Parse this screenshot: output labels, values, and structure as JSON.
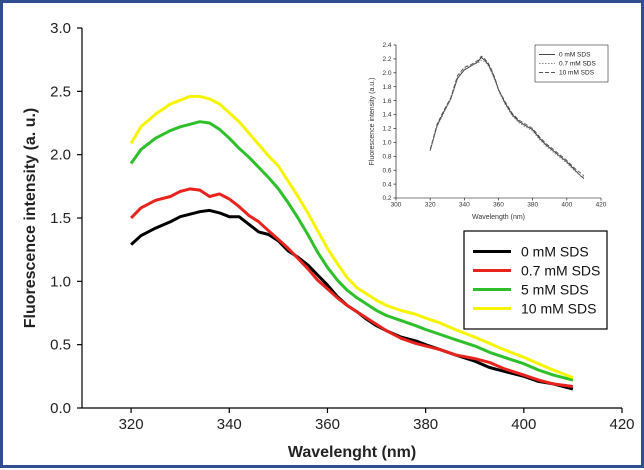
{
  "colors": {
    "frame": "#2f4d8f",
    "series": [
      "#000000",
      "#e8231d",
      "#2fbf2b",
      "#f5f500"
    ],
    "inset_series": [
      "#333333",
      "#888888",
      "#555555"
    ]
  },
  "chart_data": [
    {
      "type": "line",
      "title": "",
      "xlabel": "Wavelenght (nm)",
      "ylabel": "Fluorescence intensity (a. u.)",
      "xlim": [
        310,
        420
      ],
      "ylim": [
        0.0,
        3.0
      ],
      "xticks": [
        320,
        340,
        360,
        380,
        400,
        420
      ],
      "yticks": [
        0.0,
        0.5,
        1.0,
        1.5,
        2.0,
        2.5,
        3.0
      ],
      "ytick_labels": [
        "0.0",
        "0.5",
        "1.0",
        "1.5",
        "2.0",
        "2.5",
        "3.0"
      ],
      "grid": false,
      "legend_position": "center-right",
      "x": [
        320,
        322,
        325,
        328,
        330,
        332,
        334,
        336,
        338,
        340,
        342,
        344,
        346,
        348,
        350,
        352,
        354,
        356,
        358,
        360,
        362,
        364,
        366,
        368,
        370,
        372,
        375,
        378,
        380,
        383,
        386,
        390,
        393,
        396,
        400,
        403,
        406,
        410
      ],
      "series": [
        {
          "name": "0 mM SDS",
          "values": [
            1.29,
            1.36,
            1.42,
            1.47,
            1.51,
            1.53,
            1.55,
            1.56,
            1.54,
            1.51,
            1.51,
            1.45,
            1.39,
            1.37,
            1.32,
            1.24,
            1.19,
            1.13,
            1.05,
            0.97,
            0.88,
            0.81,
            0.76,
            0.7,
            0.65,
            0.61,
            0.56,
            0.53,
            0.5,
            0.46,
            0.42,
            0.37,
            0.32,
            0.29,
            0.25,
            0.21,
            0.19,
            0.15
          ]
        },
        {
          "name": "0.7 mM SDS",
          "values": [
            1.5,
            1.58,
            1.64,
            1.67,
            1.71,
            1.73,
            1.72,
            1.67,
            1.69,
            1.65,
            1.59,
            1.52,
            1.47,
            1.4,
            1.33,
            1.26,
            1.18,
            1.1,
            1.01,
            0.94,
            0.87,
            0.81,
            0.76,
            0.71,
            0.66,
            0.61,
            0.55,
            0.51,
            0.49,
            0.46,
            0.42,
            0.39,
            0.36,
            0.31,
            0.26,
            0.22,
            0.19,
            0.17
          ]
        },
        {
          "name": "5 mM SDS",
          "values": [
            1.93,
            2.04,
            2.13,
            2.19,
            2.22,
            2.24,
            2.26,
            2.25,
            2.2,
            2.13,
            2.05,
            1.98,
            1.9,
            1.82,
            1.73,
            1.62,
            1.5,
            1.37,
            1.23,
            1.11,
            1.01,
            0.93,
            0.87,
            0.82,
            0.77,
            0.73,
            0.69,
            0.65,
            0.62,
            0.58,
            0.54,
            0.49,
            0.44,
            0.4,
            0.35,
            0.3,
            0.26,
            0.22
          ]
        },
        {
          "name": "10 mM SDS",
          "values": [
            2.09,
            2.22,
            2.32,
            2.4,
            2.43,
            2.46,
            2.46,
            2.44,
            2.4,
            2.33,
            2.26,
            2.17,
            2.08,
            1.99,
            1.91,
            1.79,
            1.67,
            1.54,
            1.4,
            1.26,
            1.14,
            1.03,
            0.95,
            0.9,
            0.85,
            0.81,
            0.77,
            0.74,
            0.71,
            0.67,
            0.62,
            0.56,
            0.51,
            0.46,
            0.4,
            0.35,
            0.3,
            0.24
          ]
        }
      ]
    },
    {
      "type": "line",
      "title": "",
      "xlabel": "Wavelength (nm)",
      "ylabel": "Fluorescence intensity (a.u.)",
      "xlim": [
        300,
        420
      ],
      "ylim": [
        0.2,
        2.4
      ],
      "xticks": [
        300,
        320,
        340,
        360,
        380,
        400,
        420
      ],
      "yticks": [
        0.2,
        0.4,
        0.6,
        0.8,
        1.0,
        1.2,
        1.4,
        1.6,
        1.8,
        2.0,
        2.2,
        2.4
      ],
      "ytick_labels": [
        "0.2",
        "0.4",
        "0.6",
        "0.8",
        "1.0",
        "1.2",
        "1.4",
        "1.6",
        "1.8",
        "2.0",
        "2.2",
        "2.4"
      ],
      "grid": false,
      "legend_position": "top-right",
      "x": [
        320,
        324,
        328,
        332,
        336,
        340,
        344,
        348,
        350,
        352,
        354,
        356,
        358,
        360,
        364,
        368,
        372,
        376,
        380,
        384,
        388,
        392,
        396,
        400,
        404,
        408,
        410
      ],
      "series": [
        {
          "name": "0 mM SDS",
          "values": [
            0.88,
            1.24,
            1.44,
            1.62,
            1.92,
            2.04,
            2.1,
            2.16,
            2.22,
            2.18,
            2.12,
            2.02,
            1.9,
            1.76,
            1.56,
            1.4,
            1.3,
            1.24,
            1.18,
            1.06,
            0.96,
            0.88,
            0.8,
            0.72,
            0.62,
            0.52,
            0.48
          ]
        },
        {
          "name": "0.7 mM SDS",
          "values": [
            0.88,
            1.22,
            1.42,
            1.62,
            1.94,
            2.06,
            2.12,
            2.14,
            2.18,
            2.16,
            2.1,
            2.0,
            1.88,
            1.74,
            1.54,
            1.38,
            1.28,
            1.22,
            1.16,
            1.04,
            0.94,
            0.86,
            0.78,
            0.7,
            0.6,
            0.52,
            0.5
          ]
        },
        {
          "name": "10 mM SDS",
          "values": [
            0.9,
            1.26,
            1.46,
            1.64,
            1.96,
            2.08,
            2.12,
            2.18,
            2.24,
            2.2,
            2.14,
            2.04,
            1.92,
            1.76,
            1.58,
            1.42,
            1.32,
            1.26,
            1.2,
            1.08,
            0.98,
            0.9,
            0.82,
            0.74,
            0.64,
            0.56,
            0.52
          ]
        }
      ]
    }
  ]
}
